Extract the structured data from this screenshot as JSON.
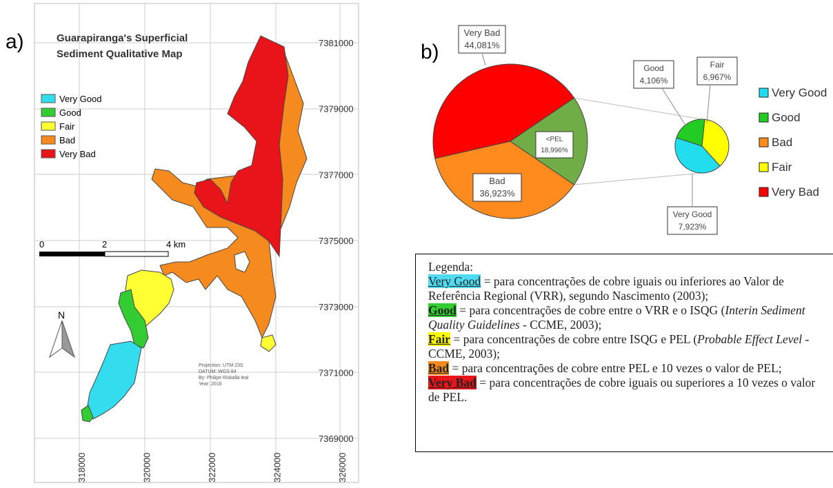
{
  "panel_labels": [
    "a)",
    "b)"
  ],
  "map": {
    "title_lines": [
      "Guarapiranga's Superficial",
      "Sediment Qualitative Map"
    ],
    "legend": [
      {
        "label": "Very Good",
        "color": "#33ddee"
      },
      {
        "label": "Good",
        "color": "#33cc33"
      },
      {
        "label": "Fair",
        "color": "#ffff33"
      },
      {
        "label": "Bad",
        "color": "#f58a1f"
      },
      {
        "label": "Very Bad",
        "color": "#e8141a"
      }
    ],
    "northings": [
      7381000,
      7379000,
      7377000,
      7375000,
      7373000,
      7371000,
      7369000
    ],
    "eastings": [
      318000,
      320000,
      322000,
      324000,
      326000
    ],
    "scale_labels": [
      "0",
      "2",
      "4 km"
    ],
    "north": "N",
    "credits": [
      "Projection: UTM 23S",
      "DATUM: WGS 84",
      "By: Philipe Riskalla leal",
      "Year: 2016"
    ]
  },
  "chart_data": {
    "type": "pie-of-pie",
    "categories": [
      "Very Bad",
      "Bad",
      "<PEL"
    ],
    "values": [
      44.081,
      36.923,
      18.996
    ],
    "value_labels": [
      "44,081%",
      "36,923%",
      "18,996%"
    ],
    "colors": [
      "#ff0000",
      "#ff8a1e",
      "#70ad47"
    ],
    "sub": {
      "categories": [
        "Good",
        "Fair",
        "Very Good"
      ],
      "values": [
        4.106,
        6.967,
        7.923
      ],
      "value_labels": [
        "4,106%",
        "6,967%",
        "7,923%"
      ],
      "colors": [
        "#22cc22",
        "#ffff00",
        "#22ddee"
      ]
    },
    "legend": {
      "entries": [
        "Very Good",
        "Good",
        "Bad",
        "Fair",
        "Very Bad"
      ],
      "colors": [
        "#22ddee",
        "#22cc22",
        "#ff8a1e",
        "#ffff00",
        "#ff0000"
      ]
    }
  },
  "legenda": {
    "heading": "Legenda:",
    "items": [
      {
        "term": "Very Good",
        "color": "#4fdcf2",
        "before": " = para concentrações de cobre iguais ou inferiores ao Valor de Referência Regional (VRR), segundo Nascimento (2003);"
      },
      {
        "term": "Good",
        "color": "#33cc33",
        "before": " = para concentrações de cobre entre o VRR e o ISQG (",
        "italic": "Interin Sediment Quality Guidelines",
        "after": " - CCME, 2003);"
      },
      {
        "term": "Fair",
        "color": "#ffff00",
        "before": " = para concentrações de cobre entre ISQG e PEL (",
        "italic": "Probable Effect Level",
        "after": " - CCME, 2003);"
      },
      {
        "term": "Bad",
        "color": "#f58a1f",
        "before": " = para concentrações de cobre entre PEL e 10 vezes o valor de PEL;"
      },
      {
        "term": "Very Bad",
        "color": "#e8141a",
        "before": " = para concentrações de cobre iguais ou superiores a 10 vezes o valor de PEL."
      }
    ]
  }
}
